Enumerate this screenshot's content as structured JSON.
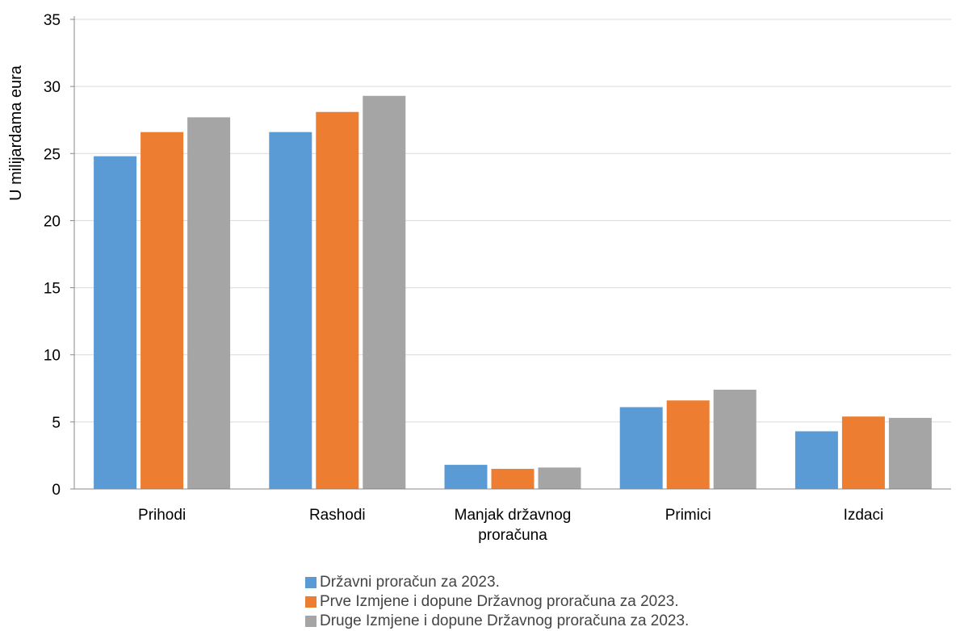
{
  "chart_data": {
    "type": "bar",
    "title": "",
    "xlabel": "",
    "ylabel": "U milijardama eura",
    "ylim": [
      0,
      35
    ],
    "yticks": [
      0,
      5,
      10,
      15,
      20,
      25,
      30,
      35
    ],
    "grid": true,
    "legend_position": "bottom",
    "categories": [
      [
        "Prihodi"
      ],
      [
        "Rashodi"
      ],
      [
        "Manjak državnog",
        "proračuna"
      ],
      [
        "Primici"
      ],
      [
        "Izdaci"
      ]
    ],
    "series": [
      {
        "name": "Državni proračun za 2023.",
        "color": "#5B9BD5",
        "values": [
          24.8,
          26.6,
          1.8,
          6.1,
          4.3
        ]
      },
      {
        "name": "Prve Izmjene i dopune Državnog proračuna za 2023.",
        "color": "#ED7D31",
        "values": [
          26.6,
          28.1,
          1.5,
          6.6,
          5.4
        ]
      },
      {
        "name": "Druge Izmjene i dopune Državnog proračuna za 2023.",
        "color": "#A5A5A5",
        "values": [
          27.7,
          29.3,
          1.6,
          7.4,
          5.3
        ]
      }
    ]
  }
}
